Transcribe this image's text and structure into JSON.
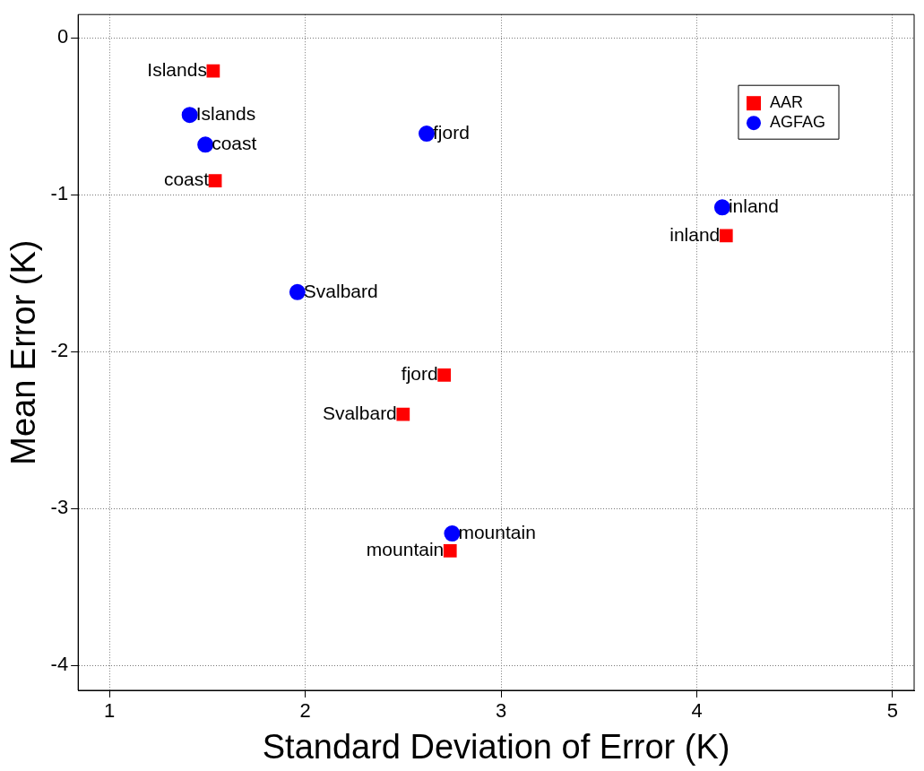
{
  "chart_data": {
    "type": "scatter",
    "xlabel": "Standard Deviation of Error (K)",
    "ylabel": "Mean Error (K)",
    "xlim": [
      0.84,
      5.11
    ],
    "xticks": [
      1,
      2,
      3,
      4,
      5
    ],
    "ylim": [
      -4.16,
      0.15
    ],
    "yticks": [
      -4,
      -3,
      -2,
      -1,
      0
    ],
    "grid": true,
    "legend": "top right",
    "line_style": "dotted",
    "series": [
      {
        "name": "AAR",
        "color": "#ff0000",
        "marker": "square",
        "x": [
          1.53,
          1.54,
          4.15,
          2.71,
          2.5,
          2.74
        ],
        "values": [
          -0.21,
          -0.91,
          -1.26,
          -2.15,
          -2.4,
          -3.27
        ],
        "value_labels": [
          "Islands",
          "coast",
          "inland",
          "fjord",
          "Svalbard",
          "mountain"
        ]
      },
      {
        "name": "AGFAG",
        "color": "#0000ff",
        "marker": "circle",
        "x": [
          1.41,
          1.49,
          2.62,
          4.13,
          1.96,
          2.75
        ],
        "values": [
          -0.49,
          -0.68,
          -0.61,
          -1.08,
          -1.62,
          -3.16
        ],
        "value_labels": [
          "Islands",
          "coast",
          "fjord",
          "inland",
          "Svalbard",
          "mountain"
        ]
      }
    ]
  }
}
